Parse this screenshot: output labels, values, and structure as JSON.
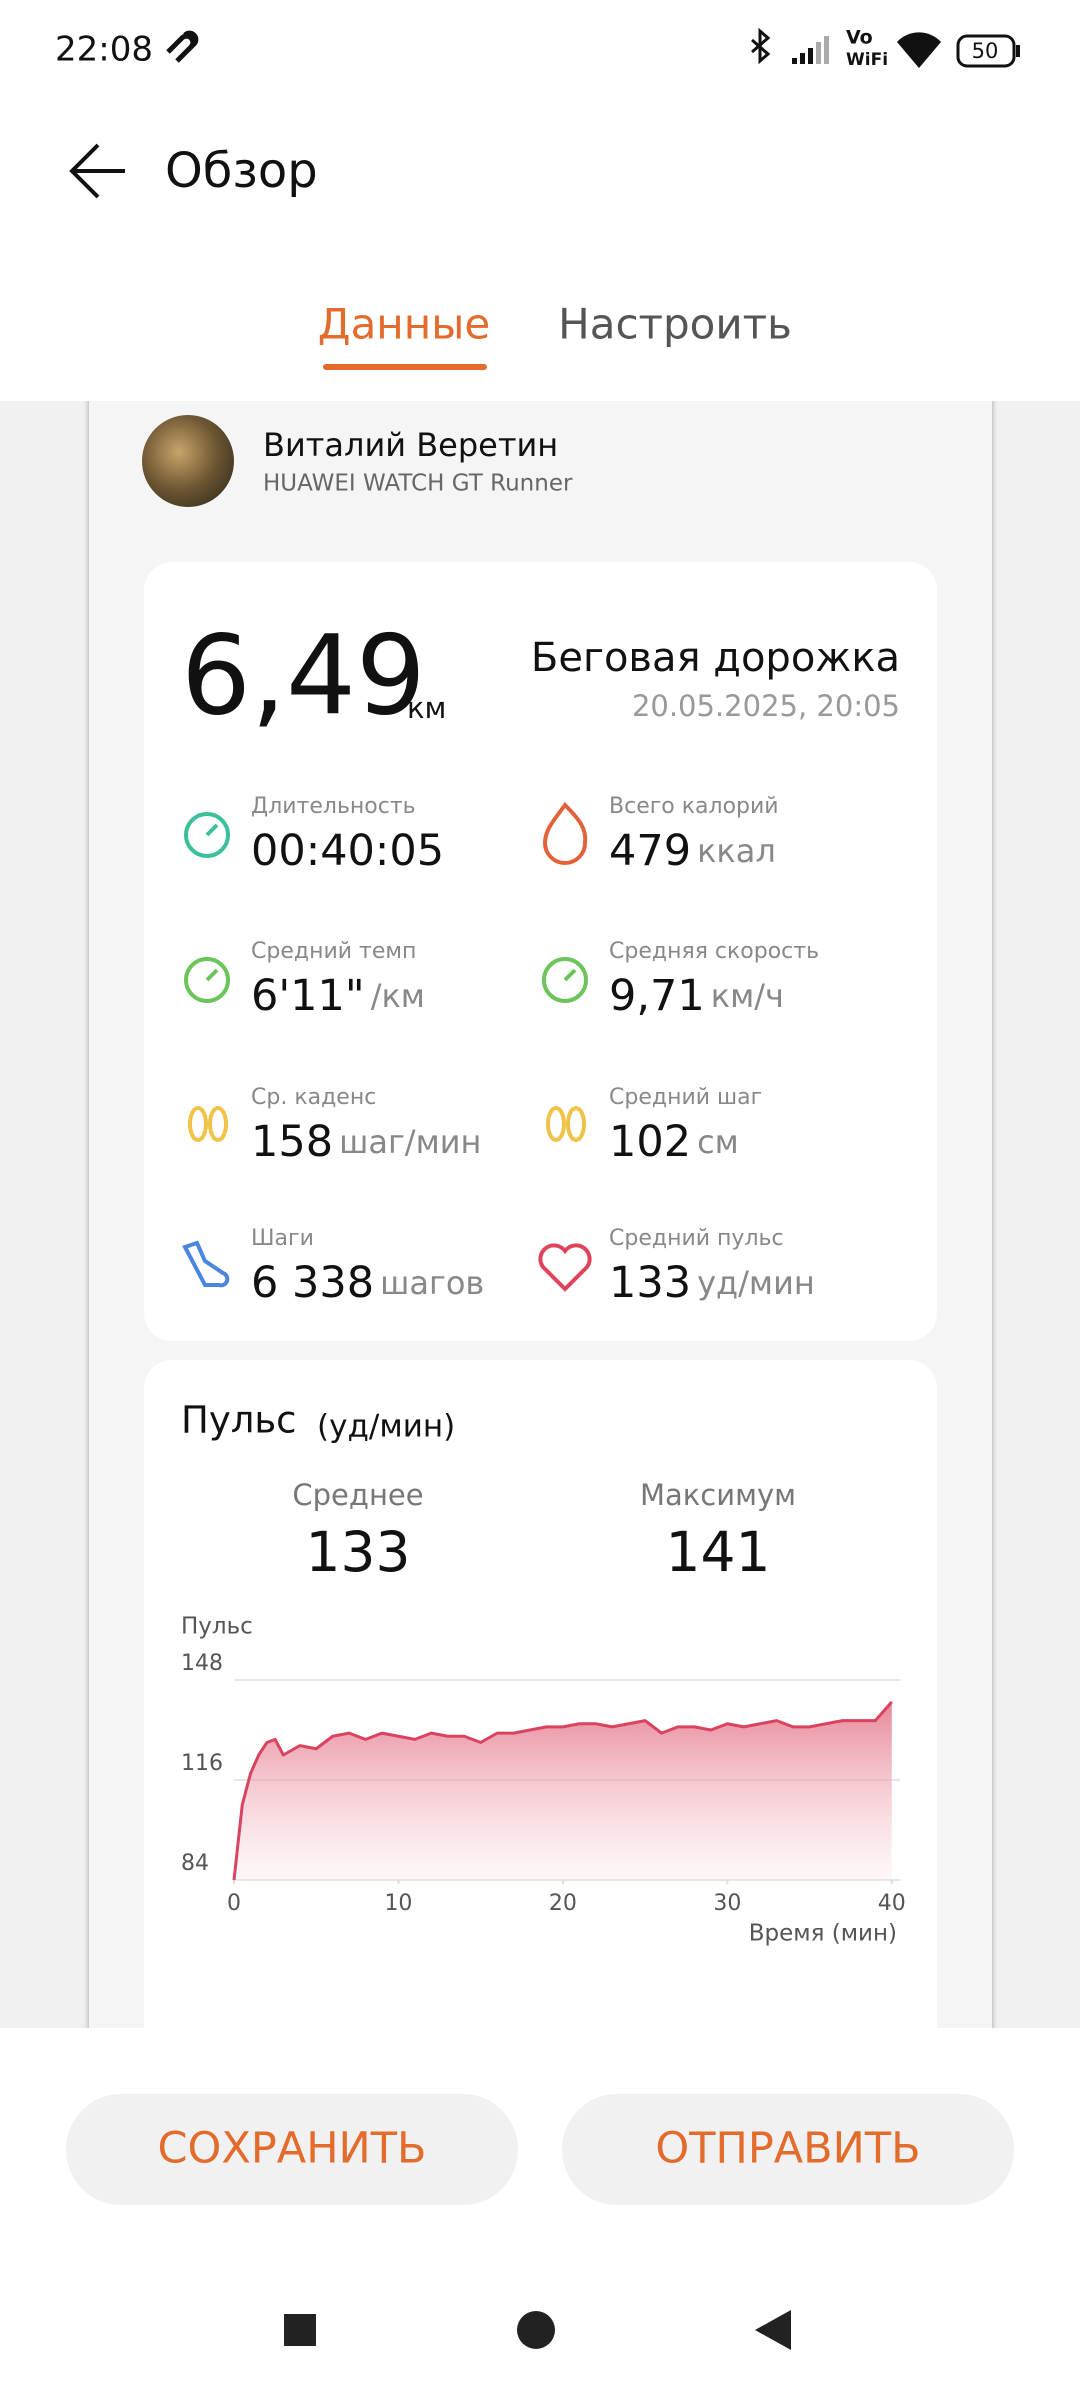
{
  "status_bar": {
    "time": "22:08",
    "vo": "Vo",
    "wifi": "WiFi",
    "battery": "50"
  },
  "header": {
    "title": "Обзор"
  },
  "tabs": [
    "Данные",
    "Настроить"
  ],
  "profile": {
    "name": "Виталий Веретин",
    "device": "HUAWEI WATCH GT Runner"
  },
  "summary": {
    "distance": "6,49",
    "distance_unit": "км",
    "activity": "Беговая дорожка",
    "datetime": "20.05.2025, 20:05"
  },
  "metrics": [
    {
      "label": "Длительность",
      "value": "00:40:05"
    },
    {
      "label": "Всего калорий",
      "value": "479",
      "unit": "ккал"
    },
    {
      "label": "Средний темп",
      "value": "6'11\"",
      "unit": "/км"
    },
    {
      "label": "Средняя скорость",
      "value": "9,71",
      "unit": "км/ч"
    },
    {
      "label": "Ср. каденс",
      "value": "158",
      "unit": "шаг/мин"
    },
    {
      "label": "Средний шаг",
      "value": "102",
      "unit": "см"
    },
    {
      "label": "Шаги",
      "value": "6 338",
      "unit": "шагов"
    },
    {
      "label": "Средний пульс",
      "value": "133",
      "unit": "уд/мин"
    }
  ],
  "pulse": {
    "title": "Пульс",
    "unit": "(уд/мин)",
    "avg_label": "Среднее",
    "avg": "133",
    "max_label": "Максимум",
    "max": "141"
  },
  "chart_data": {
    "type": "area",
    "y_label": "Пульс",
    "x_label": "Время (мин)",
    "x": [
      0,
      0.5,
      1,
      1.5,
      2,
      2.5,
      3,
      4,
      5,
      6,
      7,
      8,
      9,
      10,
      11,
      12,
      13,
      14,
      15,
      16,
      17,
      18,
      19,
      20,
      21,
      22,
      23,
      24,
      25,
      26,
      27,
      28,
      29,
      30,
      31,
      32,
      33,
      34,
      35,
      36,
      37,
      38,
      39,
      40
    ],
    "values": [
      84,
      108,
      118,
      124,
      128,
      129,
      124,
      127,
      126,
      130,
      131,
      129,
      131,
      130,
      129,
      131,
      130,
      130,
      128,
      131,
      131,
      132,
      133,
      133,
      134,
      134,
      133,
      134,
      135,
      131,
      133,
      133,
      132,
      134,
      133,
      134,
      135,
      133,
      133,
      134,
      135,
      135,
      135,
      141
    ],
    "color": "#d9435f",
    "xlim": [
      0,
      40.5
    ],
    "xticks": [
      0,
      10,
      20,
      30,
      40
    ],
    "ylim": [
      84,
      148
    ],
    "yticks": [
      84,
      116,
      148
    ],
    "grid": true
  },
  "buttons": [
    "СОХРАНИТЬ",
    "ОТПРАВИТЬ"
  ]
}
